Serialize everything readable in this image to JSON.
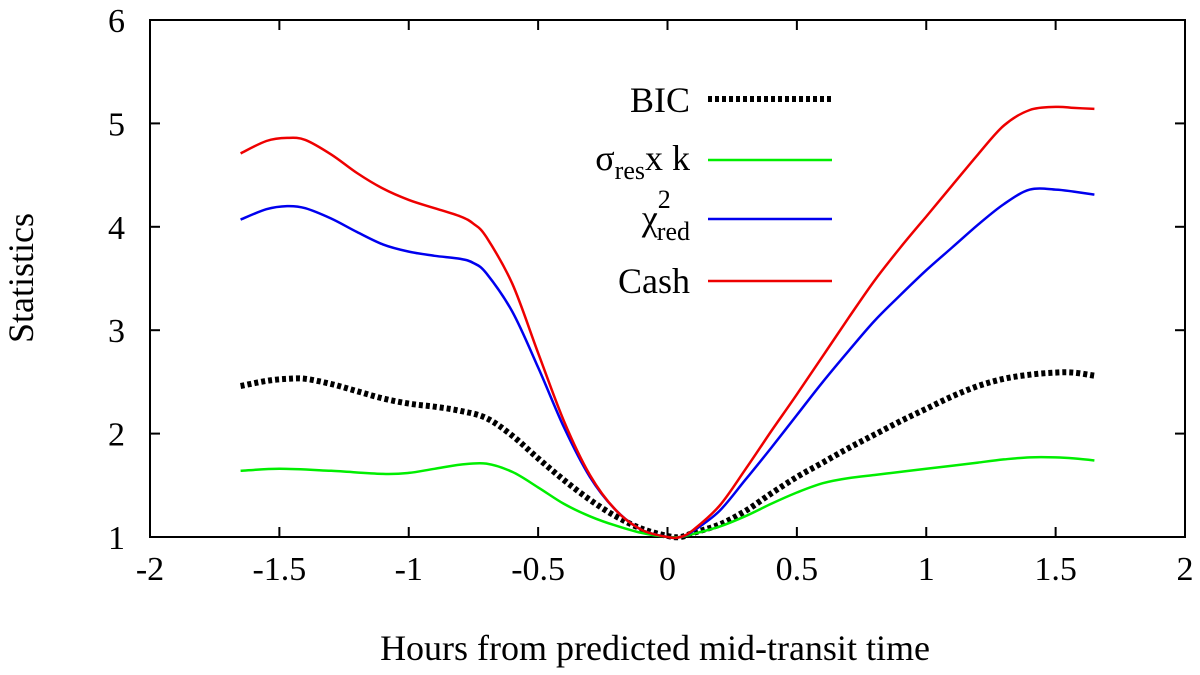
{
  "chart_data": {
    "type": "line",
    "title": "",
    "xlabel": "Hours from predicted mid-transit time",
    "ylabel": "Statistics",
    "xlim": [
      -2,
      2
    ],
    "ylim": [
      1,
      6
    ],
    "xticks": [
      -2,
      -1.5,
      -1,
      -0.5,
      0,
      0.5,
      1,
      1.5,
      2
    ],
    "xtick_labels": [
      "-2",
      "-1.5",
      "-1",
      "-0.5",
      "0",
      "0.5",
      "1",
      "1.5",
      "2"
    ],
    "yticks": [
      1,
      2,
      3,
      4,
      5,
      6
    ],
    "ytick_labels": [
      "1",
      "2",
      "3",
      "4",
      "5",
      "6"
    ],
    "grid": false,
    "legend_position": "top-center",
    "series": [
      {
        "name": "BIC",
        "legend_text": "BIC",
        "color": "#000000",
        "dashed": true,
        "x": [
          -1.65,
          -1.55,
          -1.47,
          -1.4,
          -1.3,
          -1.2,
          -1.1,
          -1.0,
          -0.9,
          -0.8,
          -0.7,
          -0.6,
          -0.5,
          -0.4,
          -0.3,
          -0.2,
          -0.1,
          0.0,
          0.05,
          0.1,
          0.2,
          0.3,
          0.4,
          0.5,
          0.6,
          0.7,
          0.8,
          0.9,
          1.0,
          1.1,
          1.2,
          1.3,
          1.4,
          1.5,
          1.57,
          1.65
        ],
        "y": [
          2.46,
          2.51,
          2.53,
          2.53,
          2.48,
          2.41,
          2.34,
          2.29,
          2.26,
          2.22,
          2.15,
          1.98,
          1.76,
          1.55,
          1.36,
          1.2,
          1.08,
          1.01,
          1.0,
          1.04,
          1.12,
          1.25,
          1.42,
          1.58,
          1.72,
          1.86,
          1.99,
          2.12,
          2.24,
          2.36,
          2.46,
          2.53,
          2.57,
          2.59,
          2.59,
          2.56
        ]
      },
      {
        "name": "sigma_res x k",
        "legend_text": "σ",
        "legend_sub": "res",
        "legend_tail": "x k",
        "color": "#00ee00",
        "dashed": false,
        "x": [
          -1.65,
          -1.5,
          -1.3,
          -1.1,
          -1.0,
          -0.9,
          -0.8,
          -0.7,
          -0.6,
          -0.5,
          -0.4,
          -0.3,
          -0.2,
          -0.1,
          0.0,
          0.05,
          0.1,
          0.2,
          0.3,
          0.4,
          0.5,
          0.6,
          0.7,
          0.8,
          0.9,
          1.0,
          1.1,
          1.2,
          1.3,
          1.4,
          1.5,
          1.57,
          1.65
        ],
        "y": [
          1.64,
          1.66,
          1.64,
          1.61,
          1.62,
          1.66,
          1.7,
          1.71,
          1.63,
          1.48,
          1.32,
          1.2,
          1.11,
          1.04,
          1.0,
          1.0,
          1.03,
          1.1,
          1.2,
          1.32,
          1.43,
          1.52,
          1.57,
          1.6,
          1.63,
          1.66,
          1.69,
          1.72,
          1.75,
          1.77,
          1.77,
          1.76,
          1.74
        ]
      },
      {
        "name": "chi2_red",
        "legend_text": "χ",
        "legend_sup": "2",
        "legend_sub": "red",
        "color": "#0000ee",
        "dashed": false,
        "x": [
          -1.65,
          -1.55,
          -1.47,
          -1.4,
          -1.3,
          -1.2,
          -1.1,
          -1.0,
          -0.9,
          -0.8,
          -0.75,
          -0.7,
          -0.6,
          -0.5,
          -0.4,
          -0.3,
          -0.2,
          -0.1,
          0.0,
          0.05,
          0.1,
          0.2,
          0.3,
          0.4,
          0.5,
          0.6,
          0.7,
          0.8,
          0.9,
          1.0,
          1.1,
          1.2,
          1.3,
          1.4,
          1.5,
          1.57,
          1.65
        ],
        "y": [
          4.07,
          4.17,
          4.2,
          4.18,
          4.08,
          3.95,
          3.83,
          3.76,
          3.72,
          3.69,
          3.65,
          3.55,
          3.18,
          2.64,
          2.06,
          1.58,
          1.26,
          1.07,
          1.0,
          1.0,
          1.06,
          1.25,
          1.55,
          1.86,
          2.18,
          2.5,
          2.8,
          3.09,
          3.34,
          3.58,
          3.8,
          4.02,
          4.22,
          4.36,
          4.36,
          4.34,
          4.31
        ]
      },
      {
        "name": "Cash",
        "legend_text": "Cash",
        "color": "#ee0000",
        "dashed": false,
        "x": [
          -1.65,
          -1.55,
          -1.47,
          -1.4,
          -1.3,
          -1.2,
          -1.1,
          -1.0,
          -0.9,
          -0.8,
          -0.75,
          -0.7,
          -0.6,
          -0.5,
          -0.4,
          -0.3,
          -0.2,
          -0.1,
          0.0,
          0.05,
          0.1,
          0.2,
          0.3,
          0.4,
          0.5,
          0.6,
          0.7,
          0.8,
          0.9,
          1.0,
          1.1,
          1.2,
          1.3,
          1.4,
          1.5,
          1.57,
          1.65
        ],
        "y": [
          4.71,
          4.83,
          4.86,
          4.84,
          4.7,
          4.52,
          4.37,
          4.26,
          4.18,
          4.1,
          4.03,
          3.9,
          3.45,
          2.78,
          2.12,
          1.6,
          1.26,
          1.07,
          1.0,
          1.0,
          1.07,
          1.3,
          1.65,
          2.02,
          2.38,
          2.75,
          3.12,
          3.48,
          3.8,
          4.1,
          4.4,
          4.7,
          4.98,
          5.13,
          5.16,
          5.15,
          5.14
        ]
      }
    ]
  }
}
